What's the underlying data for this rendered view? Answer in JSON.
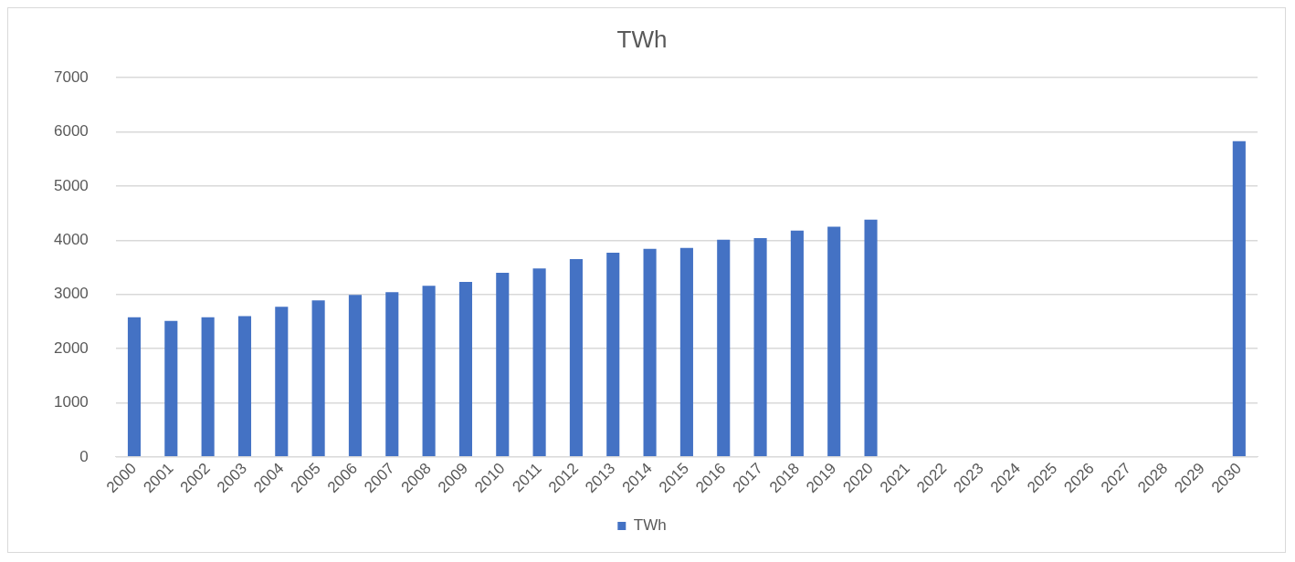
{
  "chart_data": {
    "type": "bar",
    "title": "TWh",
    "categories": [
      "2000",
      "2001",
      "2002",
      "2003",
      "2004",
      "2005",
      "2006",
      "2007",
      "2008",
      "2009",
      "2010",
      "2011",
      "2012",
      "2013",
      "2014",
      "2015",
      "2016",
      "2017",
      "2018",
      "2019",
      "2020",
      "2021",
      "2022",
      "2023",
      "2024",
      "2025",
      "2026",
      "2027",
      "2028",
      "2029",
      "2030"
    ],
    "series": [
      {
        "name": "TWh",
        "color": "#4472c4",
        "values": [
          2580,
          2510,
          2580,
          2600,
          2770,
          2890,
          2990,
          3040,
          3160,
          3230,
          3400,
          3480,
          3650,
          3770,
          3840,
          3860,
          4010,
          4040,
          4180,
          4250,
          4380,
          null,
          null,
          null,
          null,
          null,
          null,
          null,
          null,
          null,
          5830
        ]
      }
    ],
    "ylim": [
      0,
      7000
    ],
    "yticks": [
      0,
      1000,
      2000,
      3000,
      4000,
      5000,
      6000,
      7000
    ],
    "grid": "y",
    "legend": "bottom"
  }
}
